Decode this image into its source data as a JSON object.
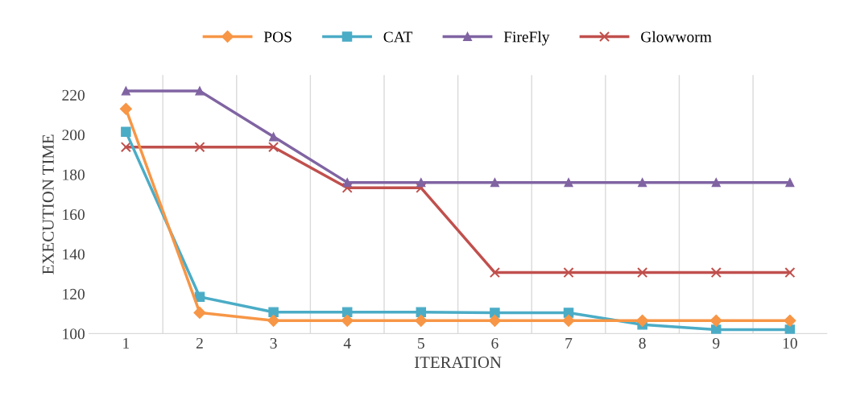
{
  "chart_data": {
    "type": "line",
    "xlabel": "ITERATION",
    "ylabel": "EXECUTION TIME",
    "categories": [
      "1",
      "2",
      "3",
      "4",
      "5",
      "6",
      "7",
      "8",
      "9",
      "10"
    ],
    "ylim": [
      100,
      230
    ],
    "yticks": [
      100,
      120,
      140,
      160,
      180,
      200,
      220
    ],
    "grid": "x",
    "legend": "top",
    "series": [
      {
        "name": "POS",
        "color": "#f79646",
        "marker": "diamond",
        "values": [
          213,
          110.5,
          106.5,
          106.5,
          106.5,
          106.5,
          106.5,
          106.5,
          106.5,
          106.5
        ]
      },
      {
        "name": "CAT",
        "color": "#4bacc6",
        "marker": "square",
        "values": [
          201.5,
          118.5,
          110.8,
          110.8,
          110.8,
          110.5,
          110.5,
          104.5,
          102,
          102
        ]
      },
      {
        "name": "FireFly",
        "color": "#8064a2",
        "marker": "triangle",
        "values": [
          222,
          222,
          199,
          176,
          176,
          176,
          176,
          176,
          176,
          176
        ]
      },
      {
        "name": "Glowworm",
        "color": "#c0504d",
        "marker": "cross",
        "values": [
          193.8,
          193.8,
          193.8,
          173.3,
          173.3,
          130.7,
          130.7,
          130.7,
          130.7,
          130.7
        ]
      }
    ]
  }
}
